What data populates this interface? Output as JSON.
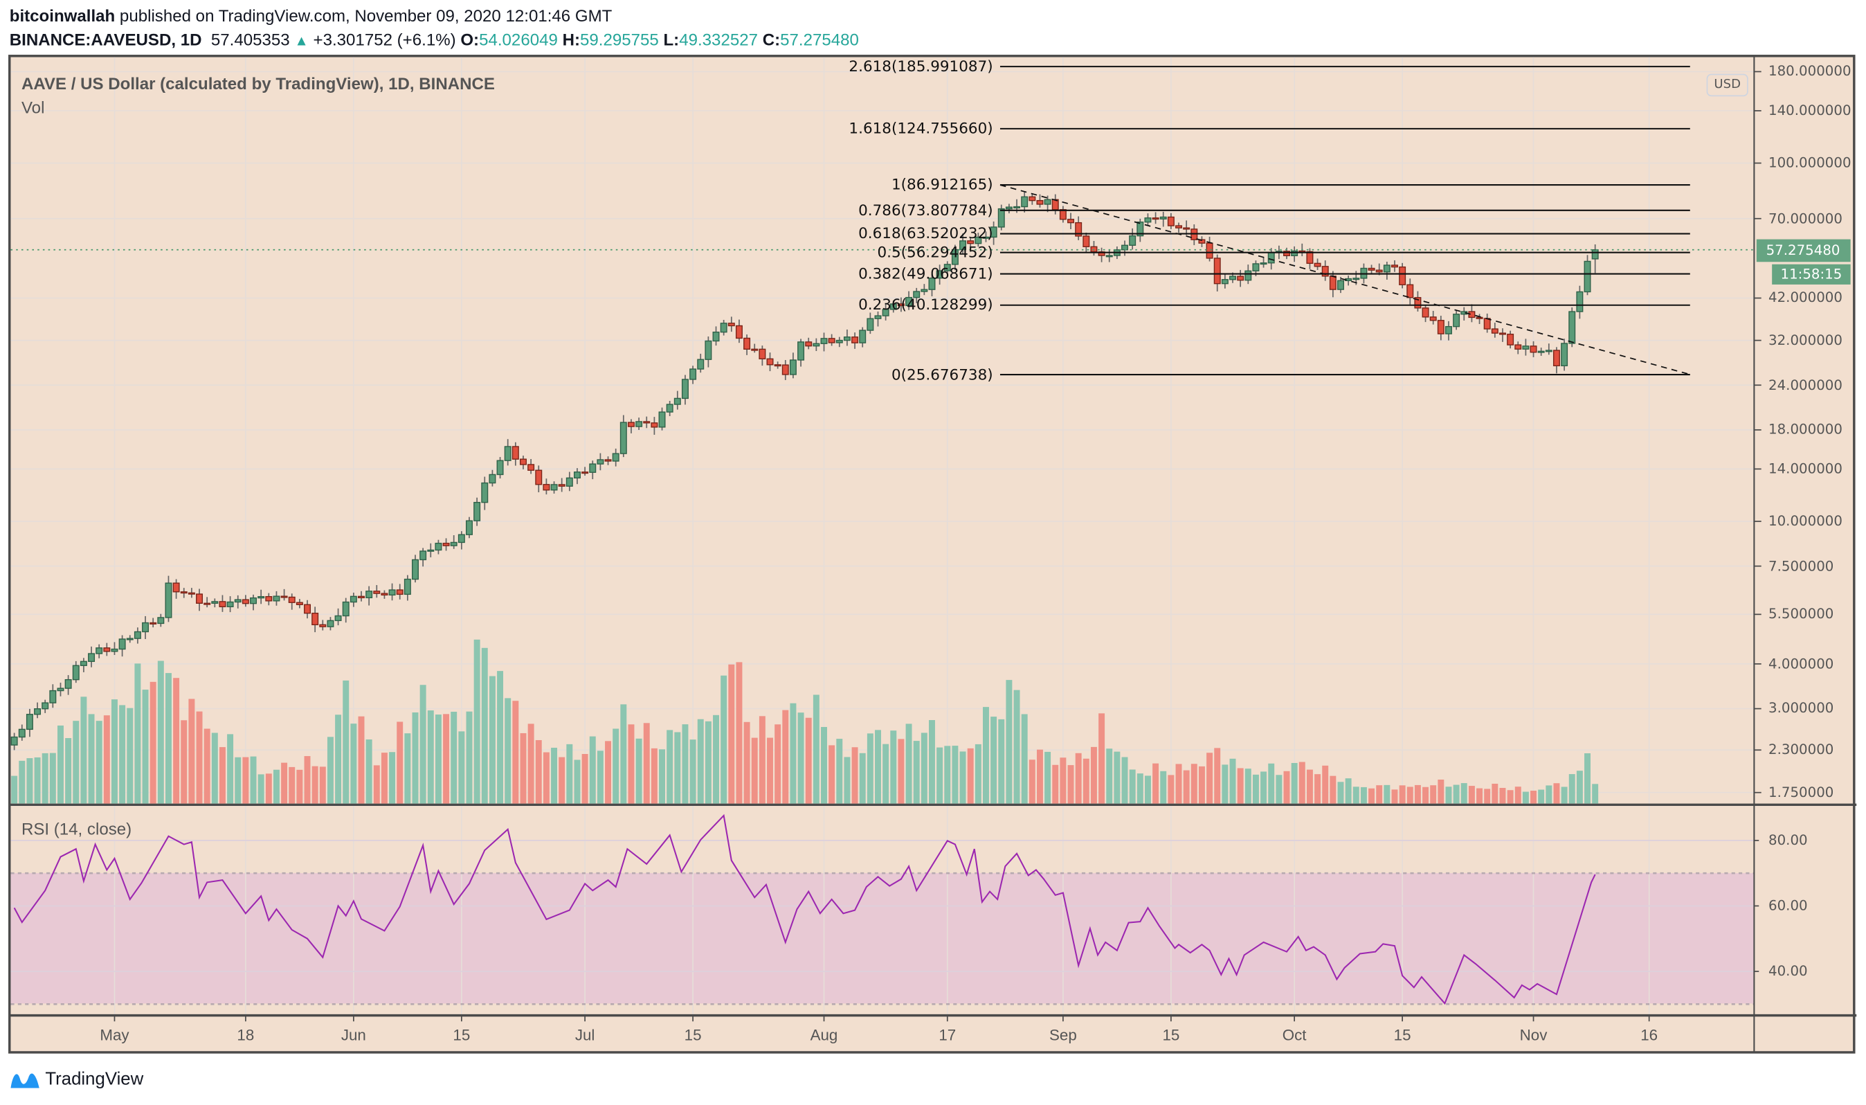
{
  "header": {
    "publisher": "bitcoinwallah",
    "published_text": "published on TradingView.com, November 09, 2020 12:01:46 GMT",
    "symbol": "BINANCE:AAVEUSD, 1D",
    "last": "57.405353",
    "change": "+3.301752 (+6.1%)",
    "o_label": "O:",
    "o": "54.026049",
    "h_label": "H:",
    "h": "59.295755",
    "l_label": "L:",
    "l": "49.332527",
    "c_label": "C:",
    "c": "57.275480"
  },
  "pane": {
    "title": "AAVE / US Dollar (calculated by TradingView), 1D, BINANCE",
    "vol_label": "Vol",
    "rsi_label": "RSI (14, close)",
    "currency_button": "USD",
    "price_tag": "57.275480",
    "countdown": "11:58:15"
  },
  "brand": {
    "name": "TradingView"
  },
  "colors": {
    "background": "#f2dfcf",
    "up": "#5b9b78",
    "down": "#e0503e",
    "vol_up": "#8cc5b0",
    "vol_down": "#ef9186",
    "rsi_line": "#9c27b0",
    "rsi_band": "#e8c9d4",
    "price_tag": "#66a482"
  },
  "chart_data": [
    {
      "type": "candlestick",
      "title": "AAVE / US Dollar (calculated by TradingView), 1D, BINANCE",
      "scale": "log",
      "start_date": "2020-04-18",
      "end_date": "2020-11-09",
      "close_keypoints_note": "day index from start_date, approximate close",
      "close_keypoints": [
        [
          0,
          2.5
        ],
        [
          6,
          3.4
        ],
        [
          10,
          4.4
        ],
        [
          13,
          4.5
        ],
        [
          19,
          5.3
        ],
        [
          20,
          6.5
        ],
        [
          25,
          6.0
        ],
        [
          36,
          6.0
        ],
        [
          40,
          5.1
        ],
        [
          44,
          6.2
        ],
        [
          50,
          6.2
        ],
        [
          53,
          8.4
        ],
        [
          58,
          9.1
        ],
        [
          61,
          12.4
        ],
        [
          64,
          15.6
        ],
        [
          69,
          12.4
        ],
        [
          74,
          14
        ],
        [
          78,
          15
        ],
        [
          79,
          18.4
        ],
        [
          83,
          18.9
        ],
        [
          86,
          22.9
        ],
        [
          89,
          28.8
        ],
        [
          92,
          35.6
        ],
        [
          95,
          30.3
        ],
        [
          100,
          26.5
        ],
        [
          102,
          31.5
        ],
        [
          109,
          31.5
        ],
        [
          112,
          38.4
        ],
        [
          117,
          43.8
        ],
        [
          120,
          49
        ],
        [
          123,
          59
        ],
        [
          126,
          61.7
        ],
        [
          128,
          74.5
        ],
        [
          131,
          80.6
        ],
        [
          134,
          77.4
        ],
        [
          138,
          61.7
        ],
        [
          140,
          55
        ],
        [
          143,
          57
        ],
        [
          147,
          72
        ],
        [
          149,
          69
        ],
        [
          154,
          59
        ],
        [
          156,
          47
        ],
        [
          159,
          49
        ],
        [
          163,
          56
        ],
        [
          167,
          55
        ],
        [
          171,
          45.4
        ],
        [
          175,
          51
        ],
        [
          179,
          51
        ],
        [
          181,
          40.6
        ],
        [
          185,
          33.5
        ],
        [
          188,
          39.6
        ],
        [
          192,
          34
        ],
        [
          195,
          29.9
        ],
        [
          199,
          29.2
        ],
        [
          200,
          27.6
        ],
        [
          201,
          31.5
        ],
        [
          202,
          38.4
        ],
        [
          203,
          45.4
        ],
        [
          204,
          54
        ],
        [
          205,
          57.27548
        ]
      ],
      "last_bar": {
        "open": 54.026049,
        "high": 59.295755,
        "low": 49.332527,
        "close": 57.27548
      },
      "volume_relative_keypoints": [
        [
          0,
          20
        ],
        [
          5,
          35
        ],
        [
          10,
          60
        ],
        [
          13,
          55
        ],
        [
          19,
          86
        ],
        [
          22,
          60
        ],
        [
          27,
          40
        ],
        [
          32,
          20
        ],
        [
          40,
          25
        ],
        [
          43,
          68
        ],
        [
          47,
          25
        ],
        [
          52,
          55
        ],
        [
          54,
          65
        ],
        [
          58,
          45
        ],
        [
          61,
          100
        ],
        [
          64,
          65
        ],
        [
          68,
          35
        ],
        [
          74,
          30
        ],
        [
          78,
          45
        ],
        [
          79,
          55
        ],
        [
          83,
          35
        ],
        [
          86,
          45
        ],
        [
          90,
          45
        ],
        [
          92,
          75
        ],
        [
          93,
          95
        ],
        [
          96,
          40
        ],
        [
          100,
          55
        ],
        [
          103,
          60
        ],
        [
          108,
          30
        ],
        [
          112,
          40
        ],
        [
          117,
          45
        ],
        [
          120,
          40
        ],
        [
          123,
          30
        ],
        [
          128,
          60
        ],
        [
          130,
          75
        ],
        [
          132,
          30
        ],
        [
          137,
          25
        ],
        [
          140,
          35
        ],
        [
          141,
          45
        ],
        [
          145,
          20
        ],
        [
          150,
          20
        ],
        [
          154,
          25
        ],
        [
          156,
          30
        ],
        [
          160,
          20
        ],
        [
          165,
          20
        ],
        [
          167,
          25
        ],
        [
          172,
          15
        ],
        [
          175,
          10
        ],
        [
          180,
          10
        ],
        [
          185,
          12
        ],
        [
          192,
          10
        ],
        [
          197,
          8
        ],
        [
          201,
          12
        ],
        [
          203,
          20
        ],
        [
          204,
          30
        ],
        [
          205,
          13
        ]
      ],
      "y_ticks": [
        "180.000000",
        "140.000000",
        "100.000000",
        "70.000000",
        "42.000000",
        "32.000000",
        "24.000000",
        "18.000000",
        "14.000000",
        "10.000000",
        "7.500000",
        "5.500000",
        "4.000000",
        "3.000000",
        "2.300000",
        "1.750000"
      ],
      "x_ticks": [
        {
          "label": "May",
          "day": 13
        },
        {
          "label": "18",
          "day": 30
        },
        {
          "label": "Jun",
          "day": 44
        },
        {
          "label": "15",
          "day": 58
        },
        {
          "label": "Jul",
          "day": 74
        },
        {
          "label": "15",
          "day": 88
        },
        {
          "label": "Aug",
          "day": 105
        },
        {
          "label": "17",
          "day": 121
        },
        {
          "label": "Sep",
          "day": 136
        },
        {
          "label": "15",
          "day": 150
        },
        {
          "label": "Oct",
          "day": 166
        },
        {
          "label": "15",
          "day": 180
        },
        {
          "label": "Nov",
          "day": 197
        },
        {
          "label": "16",
          "day": 212
        }
      ],
      "fib_retracement": [
        {
          "level": 2.618,
          "price": 185.991087,
          "label": "2.618(185.991087)"
        },
        {
          "level": 1.618,
          "price": 124.75566,
          "label": "1.618(124.755660)"
        },
        {
          "level": 1,
          "price": 86.912165,
          "label": "1(86.912165)"
        },
        {
          "level": 0.786,
          "price": 73.807784,
          "label": "0.786(73.807784)"
        },
        {
          "level": 0.618,
          "price": 63.520232,
          "label": "0.618(63.520232)"
        },
        {
          "level": 0.5,
          "price": 56.294452,
          "label": "0.5(56.294452)"
        },
        {
          "level": 0.382,
          "price": 49.068671,
          "label": "0.382(49.068671)"
        },
        {
          "level": 0.236,
          "price": 40.128299,
          "label": "0.236(40.128299)"
        },
        {
          "level": 0,
          "price": 25.676738,
          "label": "0(25.676738)"
        }
      ],
      "fib_range_days": [
        130,
        217
      ],
      "trendline": {
        "from": [
          130,
          86.9
        ],
        "to": [
          217,
          25.7
        ],
        "style": "dashed"
      },
      "current_price": 57.27548
    },
    {
      "type": "line",
      "title": "RSI (14, close)",
      "ylim": [
        25,
        92
      ],
      "bands": [
        30,
        70
      ],
      "y_ticks": [
        "80.00",
        "60.00",
        "40.00"
      ],
      "points": [
        [
          0,
          59.4
        ],
        [
          1,
          55
        ],
        [
          4,
          64.7
        ],
        [
          6,
          75
        ],
        [
          8,
          77.4
        ],
        [
          9,
          67.6
        ],
        [
          10.5,
          78.8
        ],
        [
          12,
          71
        ],
        [
          13,
          74.5
        ],
        [
          15,
          62
        ],
        [
          16.5,
          67
        ],
        [
          20,
          81.3
        ],
        [
          22,
          78.8
        ],
        [
          23,
          79.5
        ],
        [
          24,
          62.6
        ],
        [
          25,
          67.2
        ],
        [
          27,
          67.9
        ],
        [
          30,
          57.7
        ],
        [
          32,
          63
        ],
        [
          33,
          55.6
        ],
        [
          34,
          59
        ],
        [
          36,
          52.7
        ],
        [
          38,
          50
        ],
        [
          40,
          44.3
        ],
        [
          42,
          60
        ],
        [
          43,
          57
        ],
        [
          44,
          61.5
        ],
        [
          45,
          56
        ],
        [
          48,
          52.4
        ],
        [
          50,
          59.8
        ],
        [
          53,
          78.5
        ],
        [
          54,
          64.4
        ],
        [
          55,
          70.7
        ],
        [
          57,
          60.5
        ],
        [
          59,
          66.8
        ],
        [
          61,
          77
        ],
        [
          64,
          83.4
        ],
        [
          65,
          73.2
        ],
        [
          69,
          55.9
        ],
        [
          72,
          58.7
        ],
        [
          74,
          66.8
        ],
        [
          75,
          64.7
        ],
        [
          77,
          67.9
        ],
        [
          78,
          65.8
        ],
        [
          79.5,
          77.4
        ],
        [
          82,
          72.8
        ],
        [
          85,
          81.6
        ],
        [
          86.5,
          70.4
        ],
        [
          89,
          80.2
        ],
        [
          92,
          87.6
        ],
        [
          93,
          73.9
        ],
        [
          96,
          62.6
        ],
        [
          97.5,
          66.5
        ],
        [
          100,
          48.9
        ],
        [
          101.5,
          59
        ],
        [
          103,
          64.4
        ],
        [
          104.5,
          57.7
        ],
        [
          106,
          62
        ],
        [
          107.5,
          57.7
        ],
        [
          109,
          58.7
        ],
        [
          110.5,
          65.8
        ],
        [
          112,
          68.9
        ],
        [
          113.5,
          66.1
        ],
        [
          115,
          68.2
        ],
        [
          116,
          72.1
        ],
        [
          117,
          64.7
        ],
        [
          118.5,
          70.4
        ],
        [
          121,
          79.9
        ],
        [
          122,
          78.8
        ],
        [
          123.5,
          69.6
        ],
        [
          124.5,
          77.4
        ],
        [
          125.5,
          61.2
        ],
        [
          126.5,
          64.4
        ],
        [
          127.5,
          62
        ],
        [
          128.5,
          72.1
        ],
        [
          130,
          76
        ],
        [
          131.5,
          69.3
        ],
        [
          132.5,
          71
        ],
        [
          133.5,
          68.2
        ],
        [
          135,
          63.3
        ],
        [
          136,
          64
        ],
        [
          138,
          41.8
        ],
        [
          139.5,
          53.1
        ],
        [
          140.5,
          45
        ],
        [
          141.5,
          48.9
        ],
        [
          143,
          46.4
        ],
        [
          144.5,
          54.9
        ],
        [
          146,
          55.2
        ],
        [
          147,
          59.4
        ],
        [
          148.5,
          53.8
        ],
        [
          150.5,
          47.1
        ],
        [
          151,
          48.2
        ],
        [
          152.5,
          45.7
        ],
        [
          154,
          48.2
        ],
        [
          155,
          46.4
        ],
        [
          156.5,
          39
        ],
        [
          157.5,
          43.9
        ],
        [
          158.5,
          39
        ],
        [
          159.5,
          45
        ],
        [
          162,
          48.9
        ],
        [
          165,
          46
        ],
        [
          166.5,
          50.6
        ],
        [
          167.5,
          46.4
        ],
        [
          168.5,
          47.5
        ],
        [
          170,
          45
        ],
        [
          171.5,
          37.6
        ],
        [
          172.5,
          41.1
        ],
        [
          174.5,
          45.4
        ],
        [
          176.5,
          46
        ],
        [
          177.5,
          48.4
        ],
        [
          179,
          47.8
        ],
        [
          180,
          38.7
        ],
        [
          181.5,
          35.1
        ],
        [
          182.5,
          38.3
        ],
        [
          185.5,
          30.2
        ],
        [
          188,
          45
        ],
        [
          189.5,
          42.3
        ],
        [
          192,
          37.3
        ],
        [
          194.5,
          32
        ],
        [
          195.5,
          35.8
        ],
        [
          196.5,
          34.4
        ],
        [
          197.5,
          36.2
        ],
        [
          200,
          33
        ],
        [
          202.5,
          52
        ],
        [
          204.5,
          67.2
        ],
        [
          205,
          69.6
        ]
      ]
    }
  ]
}
